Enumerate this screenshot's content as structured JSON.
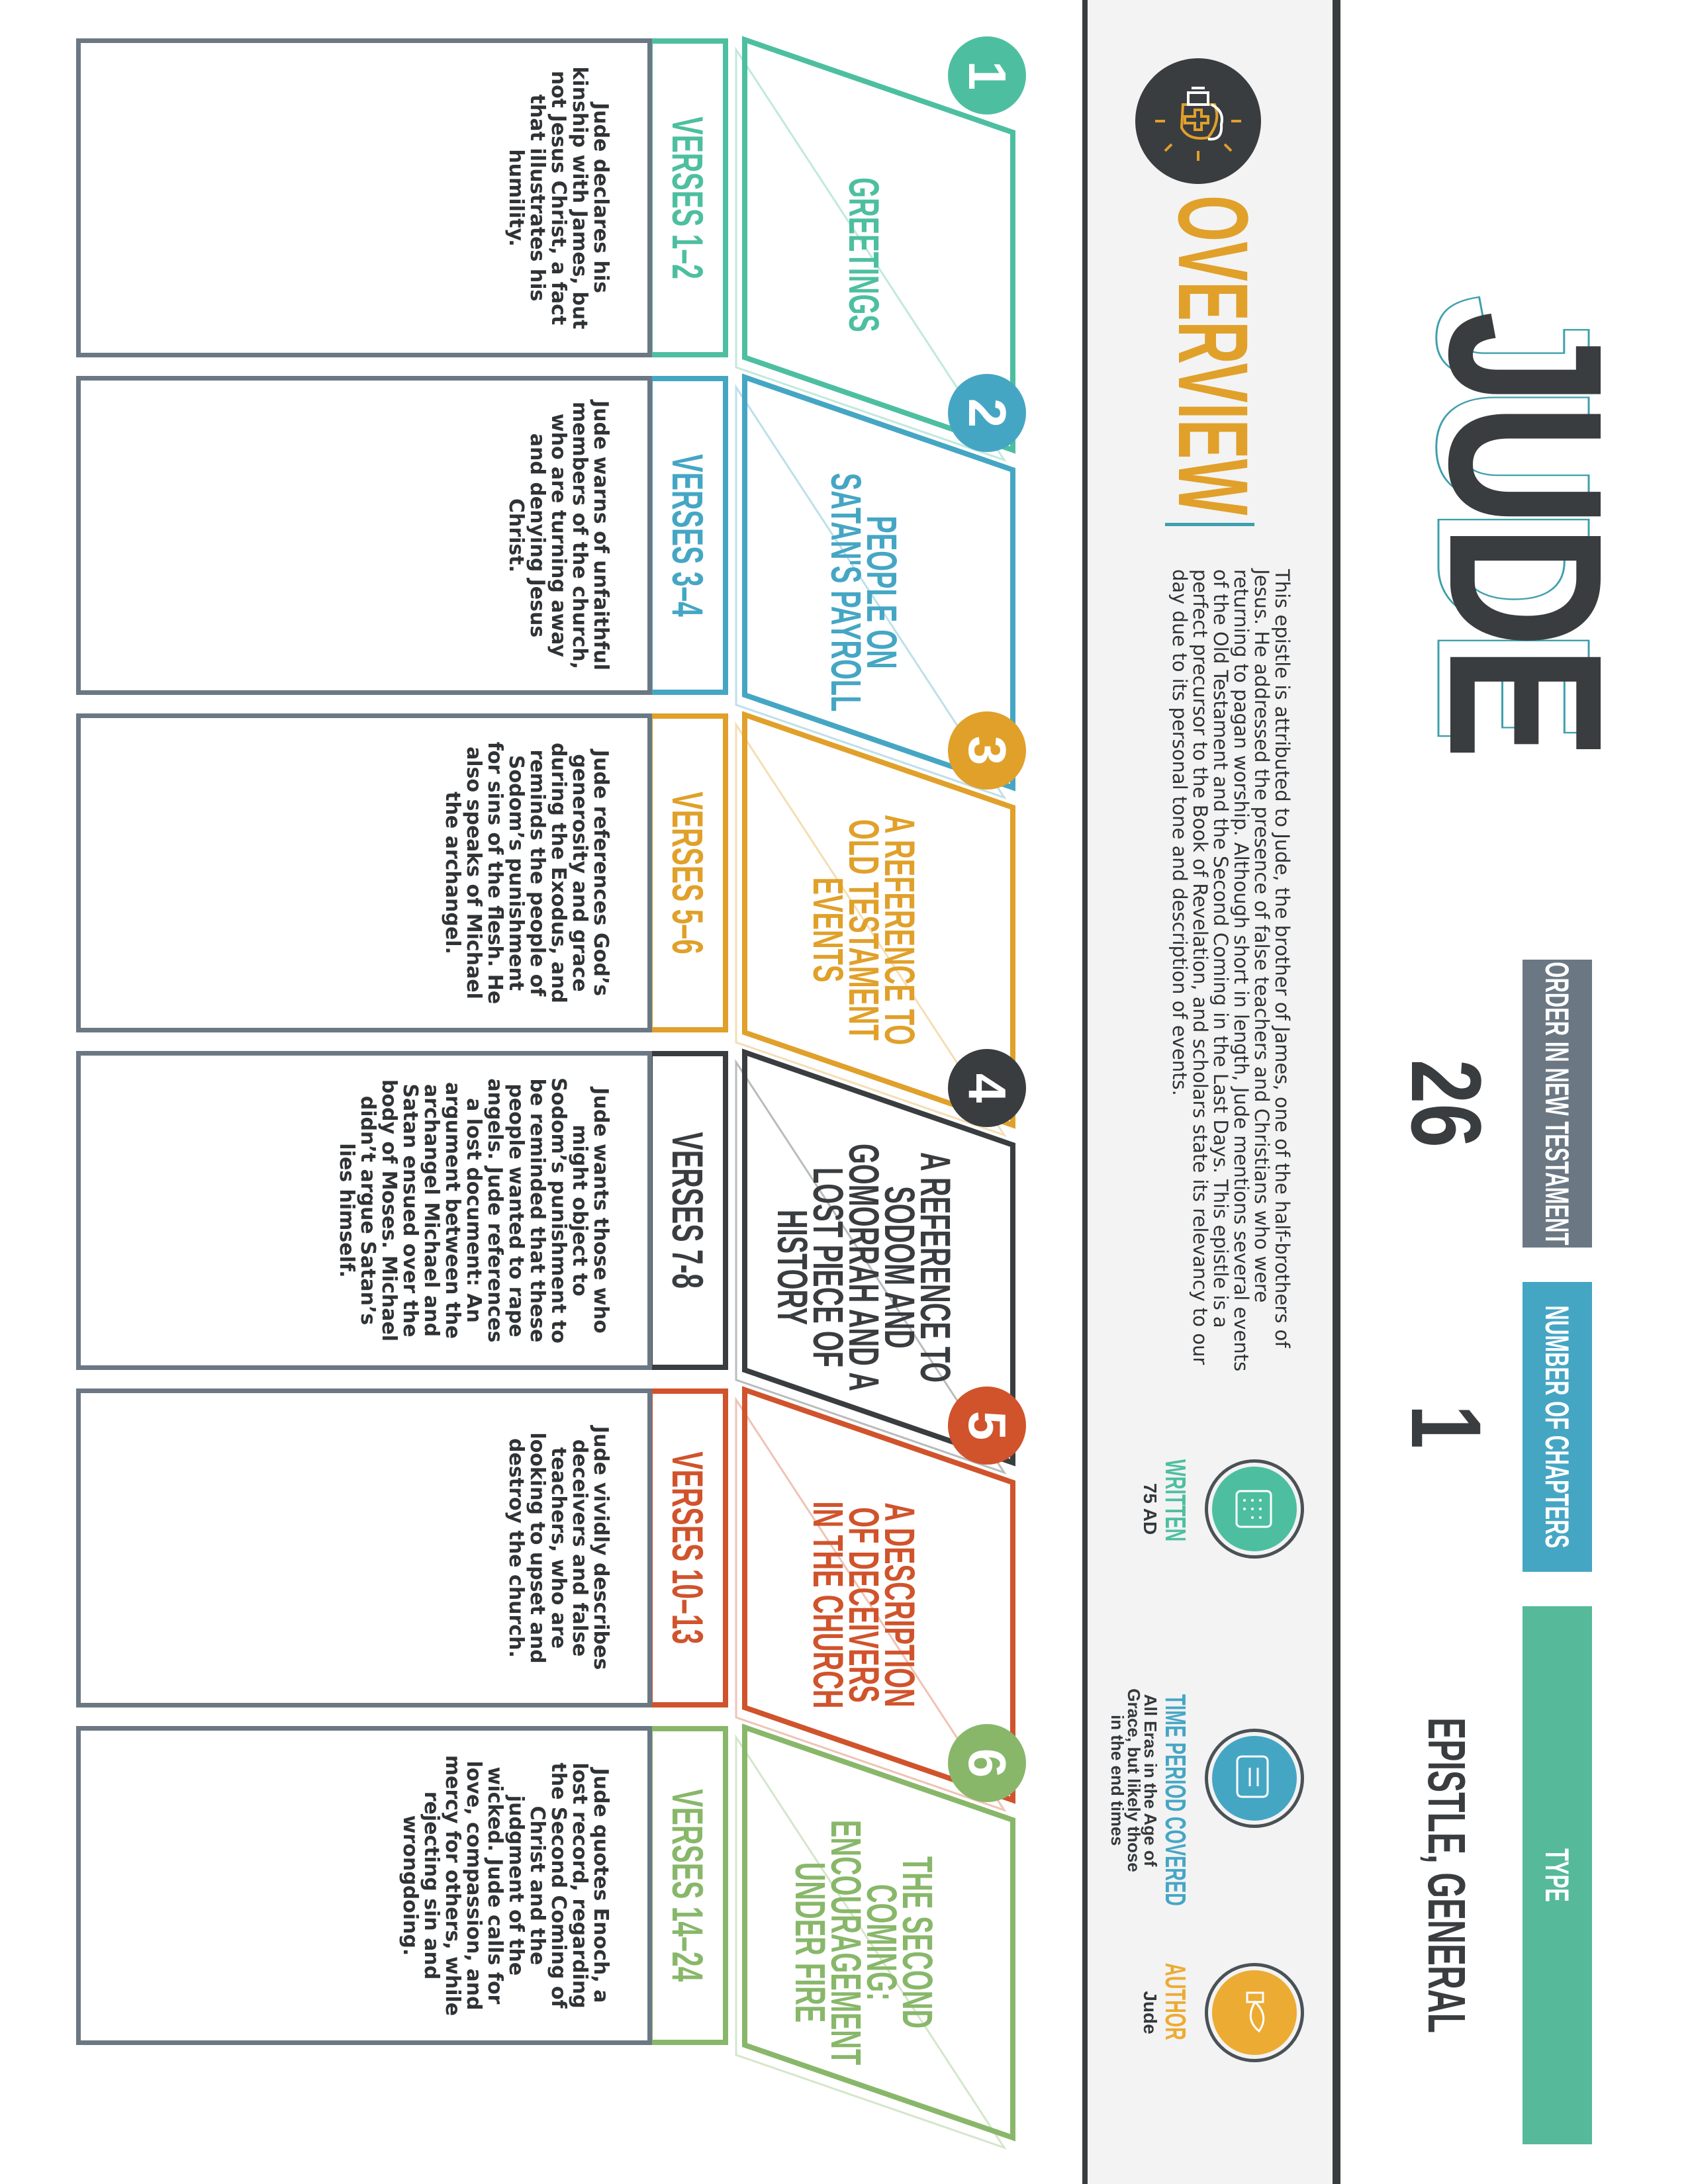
{
  "header": {
    "title": "JUDE",
    "stats": [
      {
        "label": "ORDER IN NEW TESTAMENT",
        "value": "26",
        "color": "#6b7884"
      },
      {
        "label": "NUMBER OF CHAPTERS",
        "value": "1",
        "color": "#45a6c4"
      },
      {
        "label": "TYPE",
        "value": "EPISTLE, GENERAL",
        "color": "#55b99a"
      }
    ]
  },
  "overview": {
    "title": "OVERVIEW",
    "icon": "lightbulb-brain-cross-icon",
    "text": "This epistle is attributed to Jude, the brother of James, one of the half-brothers of Jesus. He addressed the presence of false teachers and Christians who were returning to pagan worship. Although short in length, Jude mentions several events of the Old Testament and the Second Coming in the Last Days. This epistle is a perfect precursor to the Book of Revelation, and scholars state its relevancy to our day due to its personal tone and description of events.",
    "info": [
      {
        "label": "WRITTEN",
        "value": "75 AD",
        "icon": "calendar-icon",
        "color": "#4dbfa0"
      },
      {
        "label": "TIME PERIOD COVERED",
        "value": "All Eras in the Age of Grace, but likely those in the end times",
        "icon": "scroll-icon",
        "color": "#45a6c4"
      },
      {
        "label": "AUTHOR",
        "value": "Jude",
        "icon": "quill-icon",
        "color": "#ecab33"
      }
    ]
  },
  "sections": [
    {
      "number": "1",
      "title": "GREETINGS",
      "verses": "VERSES 1–2",
      "color": "#4dbfa0",
      "text": "Jude declares his kinship with James, but not Jesus Christ, a fact that illustrates his humility."
    },
    {
      "number": "2",
      "title": "PEOPLE ON\nSATAN'S PAYROLL",
      "verses": "VERSES 3–4",
      "color": "#45a6c4",
      "text": "Jude warns of unfaithful members of the church, who are turning away and denying Jesus Christ."
    },
    {
      "number": "3",
      "title": "A REFERENCE TO\nOLD TESTAMENT\nEVENTS",
      "verses": "VERSES 5–6",
      "color": "#e0a02a",
      "text": "Jude references God’s generosity and grace during the Exodus, and reminds the people of Sodom’s punishment for sins of the flesh. He also speaks of Michael the archangel."
    },
    {
      "number": "4",
      "title": "A REFERENCE TO\nSODOM AND\nGOMORRAH AND A\nLOST PIECE OF\nHISTORY",
      "verses": "VERSES 7-8",
      "color": "#3a3d40",
      "text": "Jude wants those who might object to Sodom’s punishment to be reminded that these people wanted to rape angels. Jude references a lost document: An argument between the archangel Michael and Satan ensued over the body of Moses. Michael didn’t argue Satan’s lies himself."
    },
    {
      "number": "5",
      "title": "A DESCRIPTION\nOF DECEIVERS\nIN THE CHURCH",
      "verses": "VERSES 10–13",
      "color": "#d0532c",
      "text": "Jude vividly describes deceivers and false teachers, who are looking to upset and destroy the church."
    },
    {
      "number": "6",
      "title": "THE SECOND\nCOMING:\nENCOURAGEMENT\nUNDER FIRE",
      "verses": "VERSES 14–24",
      "color": "#88b76a",
      "text": "Jude quotes Enoch, a lost record, regarding the Second Coming of Christ and the judgment of the wicked. Jude calls for love, compassion, and mercy for others, while rejecting sin and wrongdoing."
    }
  ]
}
